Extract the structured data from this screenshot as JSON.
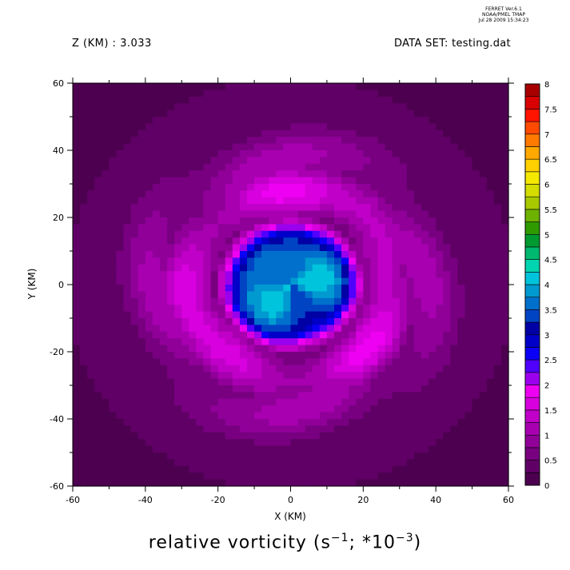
{
  "header": {
    "program_lines": [
      "FERRET  Ver.6.1",
      "NOAA/PMEL TMAP",
      "Jul 28 2009 15:34:23"
    ],
    "z_label": "Z (KM) : 3.033",
    "dataset_label": "DATA SET: testing.dat"
  },
  "chart_data": {
    "type": "heatmap",
    "title_prefix": "relative vorticity (s",
    "title_exp1": "−1",
    "title_mid": "; *10",
    "title_exp2": "−3",
    "title_suffix": ")",
    "xlabel": "X (KM)",
    "ylabel": "Y (KM)",
    "xlim": [
      -60,
      60
    ],
    "ylim": [
      -60,
      60
    ],
    "xticks": [
      -60,
      -40,
      -20,
      0,
      20,
      40,
      60
    ],
    "yticks": [
      -60,
      -40,
      -20,
      0,
      20,
      40,
      60
    ],
    "colorbar": {
      "levels": [
        0,
        0.25,
        0.5,
        0.75,
        1,
        1.25,
        1.5,
        1.75,
        2,
        2.25,
        2.5,
        2.75,
        3,
        3.25,
        3.5,
        3.75,
        4,
        4.25,
        4.5,
        4.75,
        5,
        5.25,
        5.5,
        5.75,
        6,
        6.25,
        6.5,
        6.75,
        7,
        7.25,
        7.5,
        7.75,
        8
      ],
      "labels": [
        "0",
        "0.5",
        "1",
        "1.5",
        "2",
        "2.5",
        "3",
        "3.5",
        "4",
        "4.5",
        "5",
        "5.5",
        "6",
        "6.5",
        "7",
        "7.5",
        "8"
      ],
      "label_values": [
        0,
        0.5,
        1,
        1.5,
        2,
        2.5,
        3,
        3.5,
        4,
        4.5,
        5,
        5.5,
        6,
        6.5,
        7,
        7.5,
        8
      ],
      "colors": [
        "#4d0050",
        "#600066",
        "#780080",
        "#900099",
        "#a800b0",
        "#c000c8",
        "#d800de",
        "#ee00f2",
        "#9a00ee",
        "#5000ff",
        "#0a00f5",
        "#0000c8",
        "#0000a4",
        "#0044c4",
        "#0070cc",
        "#009ad0",
        "#00c4dc",
        "#00d4b0",
        "#00b870",
        "#009a30",
        "#2e9a00",
        "#6eb200",
        "#a8c800",
        "#d4dc00",
        "#f5e800",
        "#ffd000",
        "#ffa800",
        "#ff7a00",
        "#ff4a00",
        "#ff1400",
        "#d80000",
        "#a80000"
      ]
    },
    "vortex": {
      "center": [
        0,
        0
      ],
      "ring_radius": 28,
      "core_peak": 3.8,
      "ring_peak": 1.45,
      "background": 0.45
    }
  }
}
